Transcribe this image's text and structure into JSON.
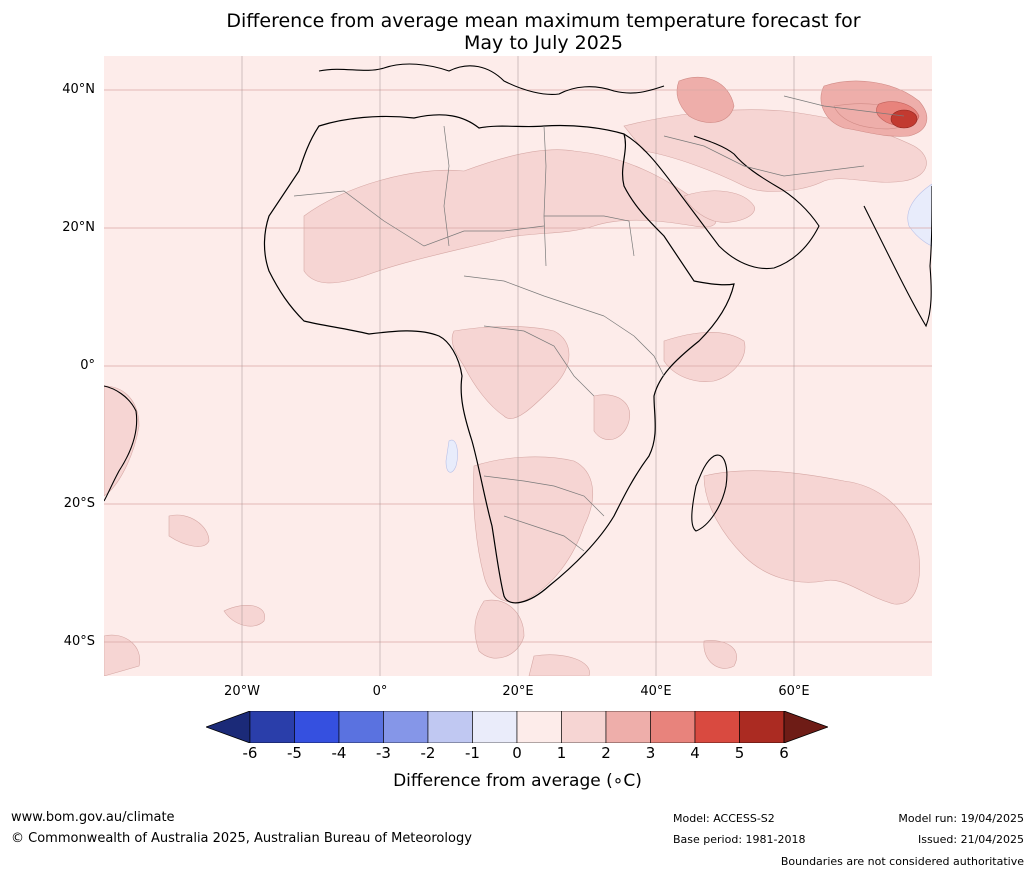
{
  "title_line1": "Difference from average mean maximum temperature forecast for",
  "title_line2": "May to July 2025",
  "lat_labels": [
    "40°N",
    "20°N",
    "0°",
    "20°S",
    "40°S"
  ],
  "lon_labels": [
    "20°W",
    "0°",
    "20°E",
    "40°E",
    "60°E"
  ],
  "colorbar": {
    "label": "Difference from average (∘C)",
    "ticks": [
      "-6",
      "-5",
      "-4",
      "-3",
      "-2",
      "-1",
      "0",
      "1",
      "2",
      "3",
      "4",
      "5",
      "6"
    ],
    "colors": {
      "under": "#1b2a78",
      "m6": "#2a3eaa",
      "m5": "#3550e0",
      "m4": "#5a72e0",
      "m3": "#8596e8",
      "m2": "#c0c8f2",
      "m1": "#eaecfa",
      "p0": "#fdecea",
      "p1": "#f6d5d3",
      "p2": "#eeaeaa",
      "p3": "#e8837c",
      "p4": "#d94a40",
      "p5": "#ab2b22",
      "over": "#6e1c16"
    }
  },
  "footer": {
    "website": "www.bom.gov.au/climate",
    "copyright": "© Commonwealth of Australia 2025, Australian Bureau of Meteorology",
    "model": "Model: ACCESS-S2",
    "base_period": "Base period: 1981-2018",
    "model_run": "Model run: 19/04/2025",
    "issued": "Issued: 21/04/2025",
    "disclaimer": "Boundaries are not considered authoritative"
  },
  "map_colors": {
    "ocean_base": "#fdecea",
    "land_base": "#fdecea",
    "warm1": "#f6d5d3",
    "warm2": "#eeaeaa",
    "warm3": "#e8837c",
    "hot": "#c23a30",
    "cool": "#e8ecfb",
    "coast": "#000000",
    "border": "#7a7a7a",
    "grid": "#d9a9a6"
  }
}
